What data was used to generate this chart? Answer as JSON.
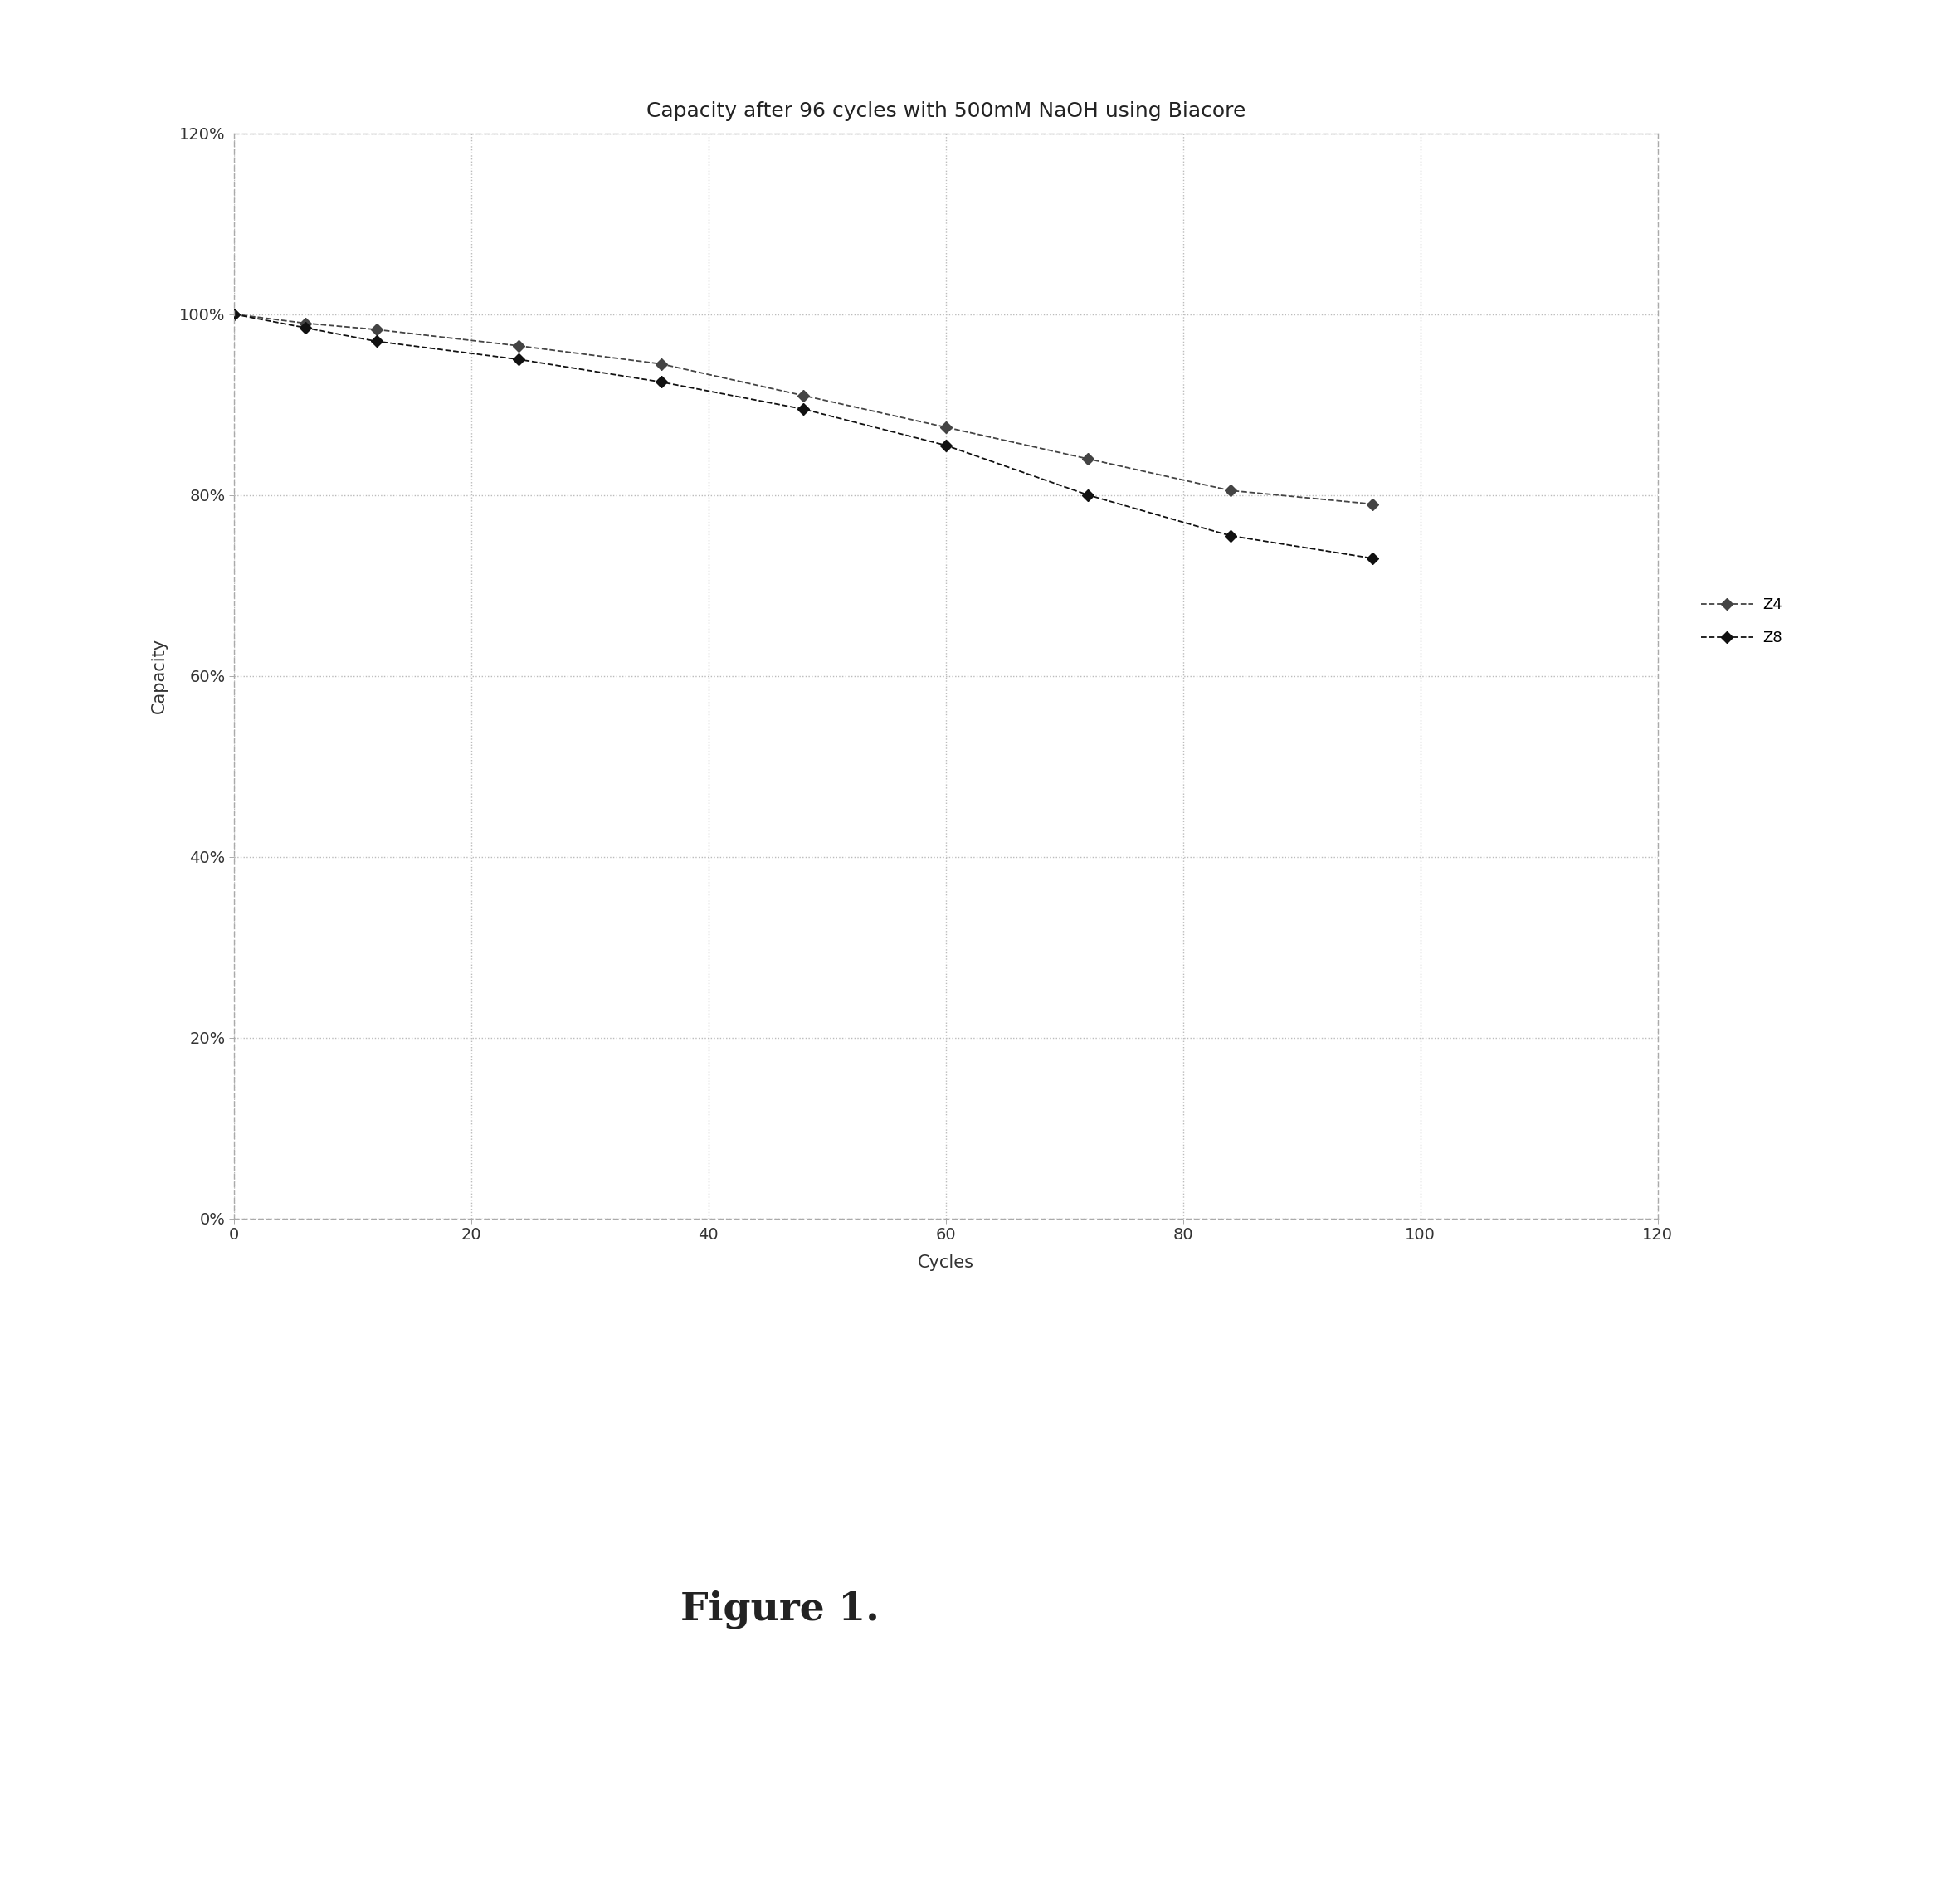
{
  "title": "Capacity after 96 cycles with 500mM NaOH using Biacore",
  "xlabel": "Cycles",
  "ylabel": "Capacity",
  "figure_caption": "Figure 1.",
  "series": [
    {
      "label": "Z4",
      "x": [
        0,
        6,
        12,
        24,
        36,
        48,
        60,
        72,
        84,
        96
      ],
      "y": [
        1.0,
        0.99,
        0.983,
        0.965,
        0.945,
        0.91,
        0.875,
        0.84,
        0.805,
        0.79
      ],
      "color": "#444444",
      "linestyle": "--",
      "marker": "D",
      "markersize": 7,
      "linewidth": 1.3
    },
    {
      "label": "Z8",
      "x": [
        0,
        6,
        12,
        24,
        36,
        48,
        60,
        72,
        84,
        96
      ],
      "y": [
        1.0,
        0.985,
        0.97,
        0.95,
        0.925,
        0.895,
        0.855,
        0.8,
        0.755,
        0.73
      ],
      "color": "#111111",
      "linestyle": "--",
      "marker": "D",
      "markersize": 7,
      "linewidth": 1.3
    }
  ],
  "xlim": [
    0,
    120
  ],
  "ylim": [
    0.0,
    1.2
  ],
  "xticks": [
    0,
    20,
    40,
    60,
    80,
    100,
    120
  ],
  "yticks": [
    0.0,
    0.2,
    0.4,
    0.6,
    0.8,
    1.0,
    1.2
  ],
  "grid_color": "#bbbbbb",
  "grid_linestyle": ":",
  "grid_linewidth": 1.0,
  "background_color": "#ffffff",
  "plot_area_color": "#ffffff",
  "title_fontsize": 18,
  "label_fontsize": 15,
  "tick_fontsize": 14,
  "legend_fontsize": 13,
  "caption_fontsize": 34,
  "border_color": "#aaaaaa"
}
